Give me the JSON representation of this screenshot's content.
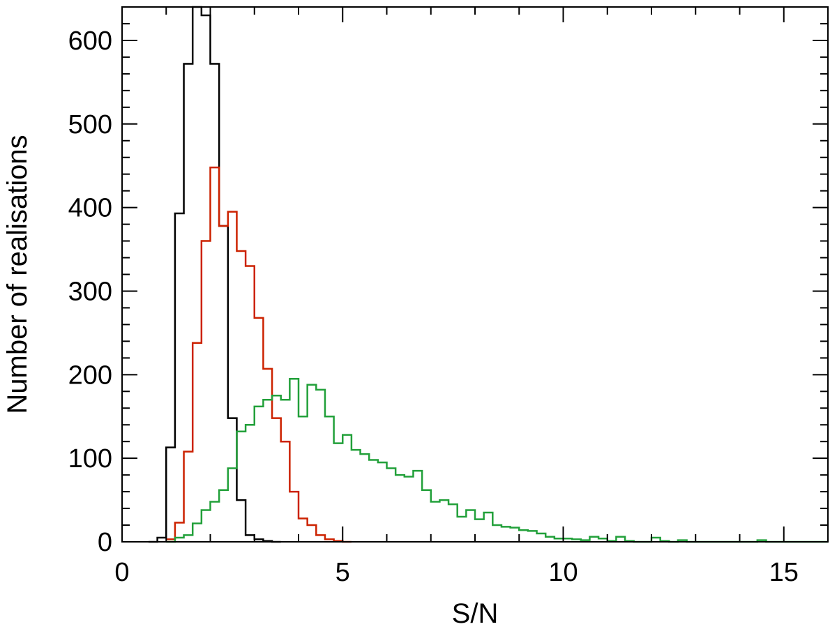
{
  "chart_data": {
    "type": "histogram",
    "title": "",
    "xlabel": "S/N",
    "ylabel": "Number of realisations",
    "xlim": [
      0,
      16
    ],
    "ylim": [
      0,
      640
    ],
    "bin_width": 0.2,
    "x_ticks": [
      0,
      5,
      10,
      15
    ],
    "x_tick_labels": [
      "0",
      "5",
      "10",
      "15"
    ],
    "y_ticks": [
      0,
      100,
      200,
      300,
      400,
      500,
      600
    ],
    "y_tick_labels": [
      "0",
      "100",
      "200",
      "300",
      "400",
      "500",
      "600"
    ],
    "grid": false,
    "legend": "none",
    "series": [
      {
        "color": "#000000",
        "bins": [
          [
            0.6,
            0
          ],
          [
            0.8,
            5
          ],
          [
            1.0,
            113
          ],
          [
            1.2,
            393
          ],
          [
            1.4,
            572
          ],
          [
            1.6,
            640
          ],
          [
            1.8,
            630
          ],
          [
            2.0,
            572
          ],
          [
            2.2,
            378
          ],
          [
            2.4,
            148
          ],
          [
            2.6,
            50
          ],
          [
            2.8,
            8
          ],
          [
            3.0,
            3
          ],
          [
            3.2,
            1
          ],
          [
            3.4,
            0
          ]
        ]
      },
      {
        "color": "#cc2200",
        "bins": [
          [
            1.0,
            3
          ],
          [
            1.2,
            23
          ],
          [
            1.4,
            108
          ],
          [
            1.6,
            238
          ],
          [
            1.8,
            360
          ],
          [
            2.0,
            448
          ],
          [
            2.2,
            378
          ],
          [
            2.4,
            395
          ],
          [
            2.6,
            348
          ],
          [
            2.8,
            330
          ],
          [
            3.0,
            268
          ],
          [
            3.2,
            207
          ],
          [
            3.4,
            148
          ],
          [
            3.6,
            120
          ],
          [
            3.8,
            60
          ],
          [
            4.0,
            28
          ],
          [
            4.2,
            20
          ],
          [
            4.4,
            8
          ],
          [
            4.6,
            3
          ],
          [
            4.8,
            1
          ],
          [
            5.0,
            0
          ]
        ]
      },
      {
        "color": "#22a03a",
        "bins": [
          [
            1.0,
            0
          ],
          [
            1.2,
            5
          ],
          [
            1.4,
            8
          ],
          [
            1.6,
            22
          ],
          [
            1.8,
            38
          ],
          [
            2.0,
            48
          ],
          [
            2.2,
            62
          ],
          [
            2.4,
            88
          ],
          [
            2.6,
            132
          ],
          [
            2.8,
            140
          ],
          [
            3.0,
            162
          ],
          [
            3.2,
            170
          ],
          [
            3.4,
            175
          ],
          [
            3.6,
            170
          ],
          [
            3.8,
            195
          ],
          [
            4.0,
            150
          ],
          [
            4.2,
            188
          ],
          [
            4.4,
            182
          ],
          [
            4.6,
            150
          ],
          [
            4.8,
            118
          ],
          [
            5.0,
            128
          ],
          [
            5.2,
            110
          ],
          [
            5.4,
            105
          ],
          [
            5.6,
            98
          ],
          [
            5.8,
            95
          ],
          [
            6.0,
            88
          ],
          [
            6.2,
            80
          ],
          [
            6.4,
            78
          ],
          [
            6.6,
            85
          ],
          [
            6.8,
            62
          ],
          [
            7.0,
            48
          ],
          [
            7.2,
            50
          ],
          [
            7.4,
            45
          ],
          [
            7.6,
            30
          ],
          [
            7.8,
            38
          ],
          [
            8.0,
            27
          ],
          [
            8.2,
            35
          ],
          [
            8.4,
            20
          ],
          [
            8.6,
            18
          ],
          [
            8.8,
            17
          ],
          [
            9.0,
            14
          ],
          [
            9.2,
            13
          ],
          [
            9.4,
            10
          ],
          [
            9.6,
            6
          ],
          [
            9.8,
            4
          ],
          [
            10.0,
            4
          ],
          [
            10.2,
            3
          ],
          [
            10.4,
            2
          ],
          [
            10.6,
            6
          ],
          [
            10.8,
            4
          ],
          [
            11.0,
            1
          ],
          [
            11.2,
            6
          ],
          [
            11.4,
            1
          ],
          [
            11.6,
            0
          ],
          [
            11.8,
            0
          ],
          [
            12.0,
            5
          ],
          [
            12.2,
            1
          ],
          [
            12.4,
            0
          ],
          [
            12.6,
            2
          ],
          [
            12.8,
            0
          ],
          [
            13.0,
            0
          ],
          [
            13.2,
            0
          ],
          [
            13.4,
            0
          ],
          [
            13.6,
            0
          ],
          [
            13.8,
            0
          ],
          [
            14.0,
            0
          ],
          [
            14.2,
            0
          ],
          [
            14.4,
            2
          ],
          [
            14.6,
            0
          ],
          [
            14.8,
            0
          ],
          [
            15.0,
            0
          ],
          [
            15.2,
            0
          ],
          [
            15.4,
            0
          ],
          [
            15.6,
            0
          ],
          [
            15.8,
            0
          ]
        ]
      }
    ]
  }
}
